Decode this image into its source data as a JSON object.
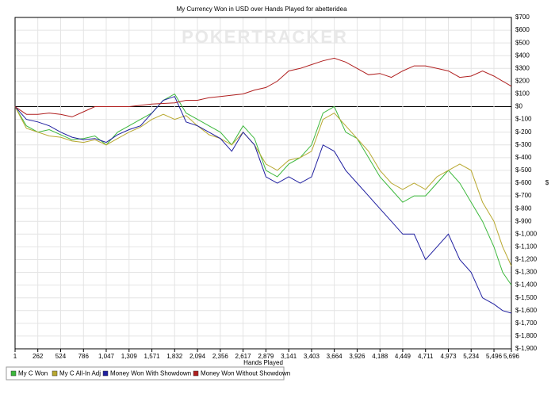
{
  "chart_data": {
    "type": "line",
    "title": "My Currency Won in USD over Hands Played for abetteridea",
    "watermark": "POKERTRACKER",
    "x_label": "Hands Played",
    "y_label": "$",
    "grid": true,
    "legend": "bottom-left",
    "xlim": [
      1,
      5696
    ],
    "ylim": [
      -1900,
      700
    ],
    "x": [
      1,
      131,
      262,
      393,
      524,
      655,
      786,
      917,
      1047,
      1178,
      1309,
      1440,
      1571,
      1702,
      1832,
      1963,
      2094,
      2225,
      2356,
      2487,
      2617,
      2748,
      2879,
      3010,
      3141,
      3272,
      3403,
      3534,
      3664,
      3795,
      3926,
      4057,
      4188,
      4319,
      4449,
      4580,
      4711,
      4842,
      4973,
      5104,
      5234,
      5365,
      5496,
      5596,
      5696
    ],
    "xticks": [
      1,
      262,
      524,
      786,
      {
        "value": 1047,
        "label": "1,047"
      },
      {
        "value": 1309,
        "label": "1,309"
      },
      {
        "value": 1571,
        "label": "1,571"
      },
      {
        "value": 1832,
        "label": "1,832"
      },
      {
        "value": 2094,
        "label": "2,094"
      },
      {
        "value": 2356,
        "label": "2,356"
      },
      {
        "value": 2617,
        "label": "2,617"
      },
      {
        "value": 2879,
        "label": "2,879"
      },
      {
        "value": 3141,
        "label": "3,141"
      },
      {
        "value": 3403,
        "label": "3,403"
      },
      {
        "value": 3664,
        "label": "3,664"
      },
      {
        "value": 3926,
        "label": "3,926"
      },
      {
        "value": 4188,
        "label": "4,188"
      },
      {
        "value": 4449,
        "label": "4,449"
      },
      {
        "value": 4711,
        "label": "4,711"
      },
      {
        "value": 4973,
        "label": "4,973"
      },
      {
        "value": 5234,
        "label": "5,234"
      },
      {
        "value": 5496,
        "label": "5,496"
      },
      {
        "value": 5696,
        "label": "5,696"
      }
    ],
    "yticks": [
      {
        "value": 700,
        "label": "$700"
      },
      {
        "value": 600,
        "label": "$600"
      },
      {
        "value": 500,
        "label": "$500"
      },
      {
        "value": 400,
        "label": "$400"
      },
      {
        "value": 300,
        "label": "$300"
      },
      {
        "value": 200,
        "label": "$200"
      },
      {
        "value": 100,
        "label": "$100"
      },
      {
        "value": 0,
        "label": "$0"
      },
      {
        "value": -100,
        "label": "$-100"
      },
      {
        "value": -200,
        "label": "$-200"
      },
      {
        "value": -300,
        "label": "$-300"
      },
      {
        "value": -400,
        "label": "$-400"
      },
      {
        "value": -500,
        "label": "$-500"
      },
      {
        "value": -600,
        "label": "$-600"
      },
      {
        "value": -700,
        "label": "$-700"
      },
      {
        "value": -800,
        "label": "$-800"
      },
      {
        "value": -900,
        "label": "$-900"
      },
      {
        "value": -1000,
        "label": "$-1,000"
      },
      {
        "value": -1100,
        "label": "$-1,100"
      },
      {
        "value": -1200,
        "label": "$-1,200"
      },
      {
        "value": -1300,
        "label": "$-1,300"
      },
      {
        "value": -1400,
        "label": "$-1,400"
      },
      {
        "value": -1500,
        "label": "$-1,500"
      },
      {
        "value": -1600,
        "label": "$-1,600"
      },
      {
        "value": -1700,
        "label": "$-1,700"
      },
      {
        "value": -1800,
        "label": "$-1,800"
      },
      {
        "value": -1900,
        "label": "$-1,900"
      }
    ],
    "series": [
      {
        "name": "My C Won",
        "color": "#3cb83c",
        "values": [
          0,
          -150,
          -200,
          -180,
          -220,
          -260,
          -250,
          -230,
          -300,
          -200,
          -150,
          -100,
          -50,
          50,
          100,
          -50,
          -100,
          -150,
          -200,
          -300,
          -150,
          -250,
          -500,
          -550,
          -450,
          -400,
          -300,
          -50,
          0,
          -200,
          -250,
          -400,
          -550,
          -650,
          -750,
          -700,
          -700,
          -600,
          -500,
          -600,
          -750,
          -900,
          -1100,
          -1300,
          -1400
        ]
      },
      {
        "name": "My C All-In Adj",
        "color": "#b8a830",
        "values": [
          0,
          -170,
          -200,
          -230,
          -240,
          -270,
          -280,
          -260,
          -300,
          -250,
          -200,
          -160,
          -100,
          -60,
          -100,
          -70,
          -150,
          -220,
          -250,
          -300,
          -200,
          -300,
          -450,
          -500,
          -420,
          -400,
          -350,
          -100,
          -50,
          -150,
          -250,
          -350,
          -500,
          -600,
          -650,
          -600,
          -650,
          -550,
          -500,
          -450,
          -500,
          -750,
          -900,
          -1100,
          -1250
        ]
      },
      {
        "name": "Money Won With Showdown",
        "color": "#2020a0",
        "values": [
          0,
          -100,
          -120,
          -150,
          -200,
          -240,
          -260,
          -250,
          -280,
          -220,
          -180,
          -150,
          -50,
          50,
          80,
          -120,
          -150,
          -200,
          -250,
          -350,
          -200,
          -300,
          -550,
          -600,
          -550,
          -600,
          -550,
          -300,
          -350,
          -500,
          -600,
          -700,
          -800,
          -900,
          -1000,
          -1000,
          -1200,
          -1100,
          -1000,
          -1200,
          -1300,
          -1500,
          -1550,
          -1600,
          -1620
        ]
      },
      {
        "name": "Money Won Without Showdown",
        "color": "#b02020",
        "values": [
          0,
          -60,
          -60,
          -50,
          -60,
          -80,
          -40,
          0,
          0,
          0,
          0,
          10,
          20,
          25,
          30,
          50,
          50,
          70,
          80,
          90,
          100,
          130,
          150,
          200,
          280,
          300,
          330,
          360,
          380,
          350,
          300,
          250,
          260,
          230,
          280,
          320,
          320,
          300,
          280,
          230,
          240,
          280,
          240,
          200,
          160
        ]
      }
    ]
  }
}
